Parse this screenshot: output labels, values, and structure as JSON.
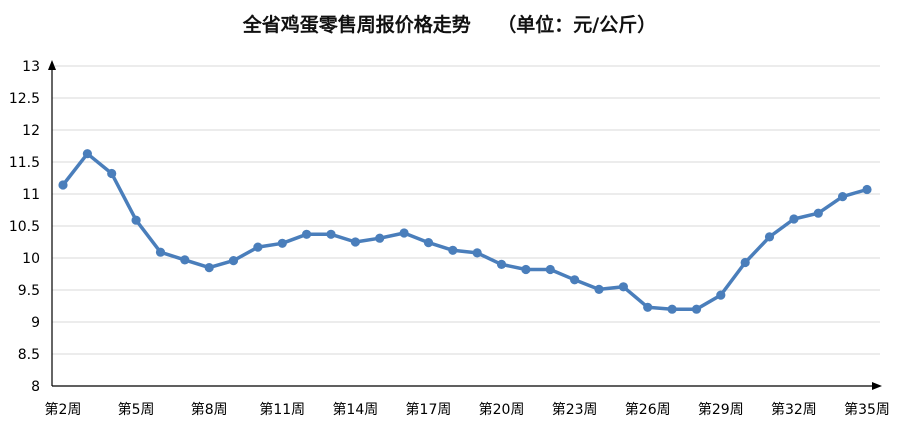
{
  "chart_data": {
    "type": "line",
    "title": "全省鸡蛋零售周报价格走势    （单位：元/公斤）",
    "xlabel": "",
    "ylabel": "",
    "ylim": [
      8,
      13
    ],
    "yticks": [
      "8",
      "8.5",
      "9",
      "9.5",
      "10",
      "10.5",
      "11",
      "11.5",
      "12",
      "12.5",
      "13"
    ],
    "x": [
      2,
      3,
      4,
      5,
      6,
      7,
      8,
      9,
      10,
      11,
      12,
      13,
      14,
      15,
      16,
      17,
      18,
      19,
      20,
      21,
      22,
      23,
      24,
      25,
      26,
      27,
      28,
      29,
      30,
      31,
      32,
      33,
      34,
      35
    ],
    "xtick_labels": [
      {
        "x": 2,
        "label": "第2周"
      },
      {
        "x": 5,
        "label": "第5周"
      },
      {
        "x": 8,
        "label": "第8周"
      },
      {
        "x": 11,
        "label": "第11周"
      },
      {
        "x": 14,
        "label": "第14周"
      },
      {
        "x": 17,
        "label": "第17周"
      },
      {
        "x": 20,
        "label": "第20周"
      },
      {
        "x": 23,
        "label": "第23周"
      },
      {
        "x": 26,
        "label": "第26周"
      },
      {
        "x": 29,
        "label": "第29周"
      },
      {
        "x": 32,
        "label": "第32周"
      },
      {
        "x": 35,
        "label": "第35周"
      }
    ],
    "series": [
      {
        "values": [
          11.14,
          11.63,
          11.32,
          10.59,
          10.09,
          9.97,
          9.85,
          9.96,
          10.17,
          10.23,
          10.37,
          10.37,
          10.25,
          10.31,
          10.39,
          10.24,
          10.12,
          10.08,
          9.9,
          9.82,
          9.82,
          9.66,
          9.51,
          9.55,
          9.23,
          9.2,
          9.2,
          9.42,
          9.93,
          10.33,
          10.61,
          10.7,
          10.96,
          11.07
        ],
        "color": "#4a7ebb"
      }
    ],
    "grid": true,
    "legend": "none",
    "colors": {
      "line": "#4a7ebb",
      "grid": "#d9d9d9",
      "axis": "#000000"
    }
  }
}
